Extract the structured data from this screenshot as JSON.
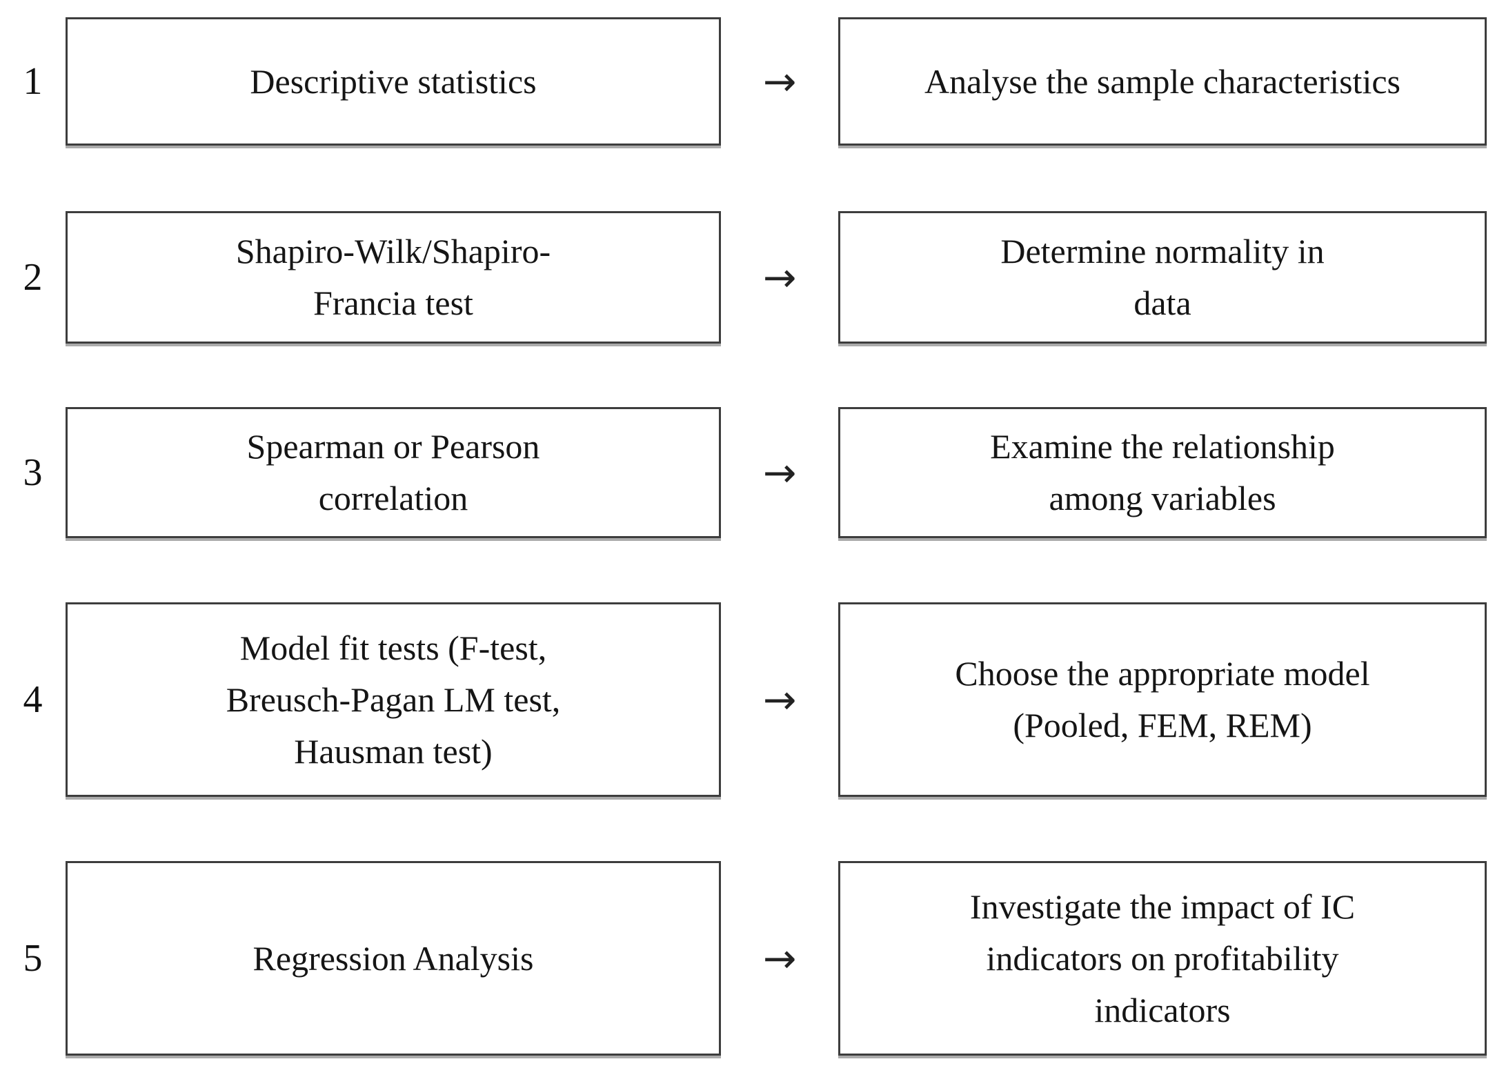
{
  "figure": {
    "arrow": "→",
    "colors": {
      "box_border": "#3d3d3d",
      "box_shadow": "#ababab",
      "text": "#151515",
      "background": "#ffffff"
    },
    "steps": [
      {
        "number": "1",
        "method": "Descriptive statistics",
        "purpose": "Analyse the sample characteristics"
      },
      {
        "number": "2",
        "method": "Shapiro-Wilk/Shapiro-Francia test",
        "purpose": "Determine normality in data"
      },
      {
        "number": "3",
        "method": "Spearman or Pearson correlation",
        "purpose": "Examine the relationship among variables"
      },
      {
        "number": "4",
        "method": "Model fit tests (F-test, Breusch-Pagan LM test, Hausman test)",
        "purpose": "Choose the appropriate model (Pooled, FEM, REM)"
      },
      {
        "number": "5",
        "method": "Regression Analysis",
        "purpose": "Investigate the impact of IC indicators on profitability indicators"
      }
    ]
  }
}
